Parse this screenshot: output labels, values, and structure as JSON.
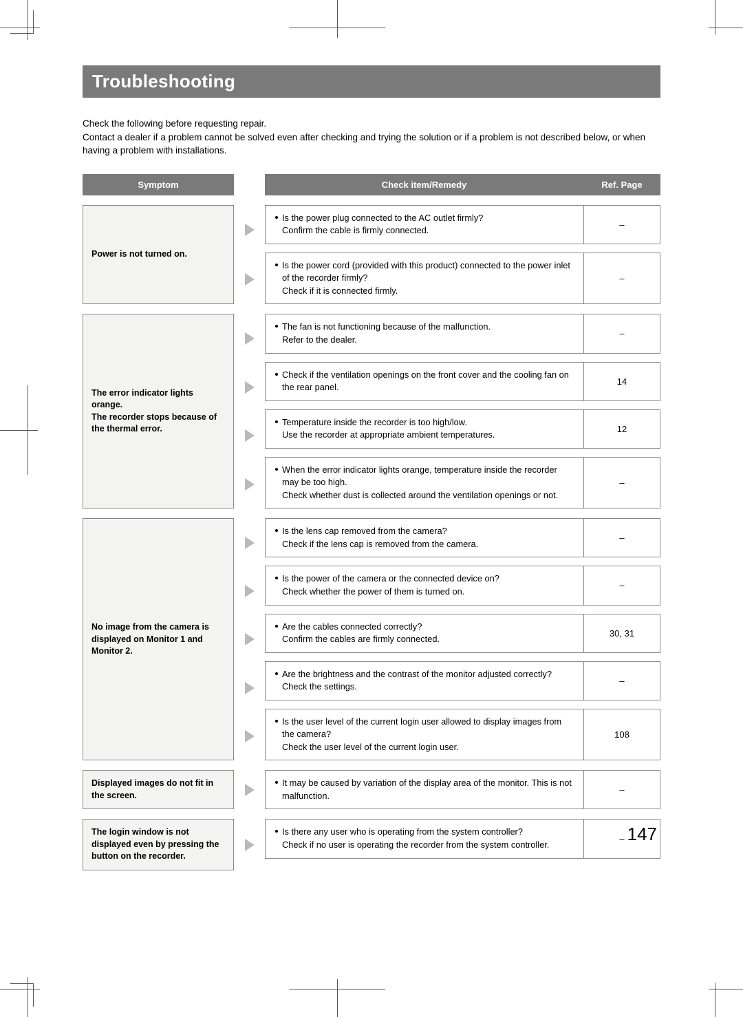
{
  "page": {
    "title": "Troubleshooting",
    "intro1": "Check the following before requesting repair.",
    "intro2": "Contact a dealer if a problem cannot be solved even after checking and trying the solution or if a problem is not described below, or when having a problem with installations.",
    "pageNumber": "147",
    "headers": {
      "symptom": "Symptom",
      "remedy": "Check item/Remedy",
      "ref": "Ref. Page"
    }
  },
  "groups": [
    {
      "symptom": "Power is not turned on.",
      "items": [
        {
          "text": "Is the power plug connected to the AC outlet firmly?\nConfirm the cable is firmly connected.",
          "ref": "–"
        },
        {
          "text": "Is the power cord (provided with this product) connected to the power inlet of the recorder firmly?\nCheck if it is connected firmly.",
          "ref": "–"
        }
      ]
    },
    {
      "symptom": "The error indicator lights orange.\nThe recorder stops because of the thermal error.",
      "items": [
        {
          "text": "The fan is not functioning because of the malfunction.\nRefer to the dealer.",
          "ref": "–"
        },
        {
          "text": "Check if the ventilation openings on the front cover and the cooling fan on the rear panel.",
          "ref": "14"
        },
        {
          "text": "Temperature inside the recorder is too high/low.\nUse the recorder at appropriate ambient temperatures.",
          "ref": "12"
        },
        {
          "text": "When the error indicator lights orange, temperature inside the recorder may be too high.\nCheck whether dust is collected around the ventilation openings or not.",
          "ref": "–"
        }
      ]
    },
    {
      "symptom": "No image from the camera is displayed on Monitor 1 and Monitor 2.",
      "items": [
        {
          "text": "Is the lens cap removed from the camera?\nCheck if the lens cap is removed from the camera.",
          "ref": "–"
        },
        {
          "text": "Is the power of the camera or the connected device on?\nCheck whether the power of them is turned on.",
          "ref": "–"
        },
        {
          "text": "Are the cables connected correctly?\nConfirm the cables are firmly connected.",
          "ref": "30, 31"
        },
        {
          "text": "Are the brightness and the contrast of the monitor adjusted correctly?\nCheck the settings.",
          "ref": "–"
        },
        {
          "text": "Is the user level of the current login user allowed to display images from the camera?\nCheck the user level of the current login user.",
          "ref": "108"
        }
      ]
    },
    {
      "symptom": "Displayed images do not fit in the screen.",
      "items": [
        {
          "text": "It may be caused by variation of the display area of the monitor. This is not malfunction.",
          "ref": "–"
        }
      ]
    },
    {
      "symptom": "The login window is not displayed even by pressing the button on the recorder.",
      "items": [
        {
          "text": "Is there any user who is operating from the system controller?\nCheck if no user is operating the recorder from the system controller.",
          "ref": "–"
        }
      ]
    }
  ]
}
